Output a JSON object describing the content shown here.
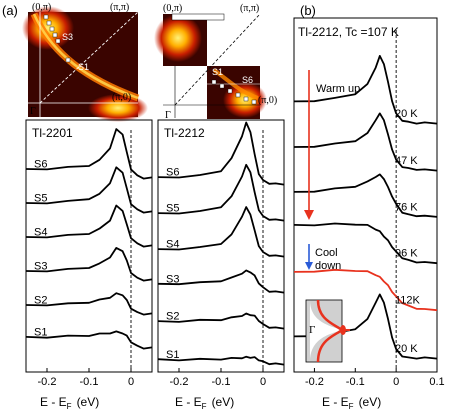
{
  "figure": {
    "panel_a_label": "(a)",
    "panel_b_label": "(b)",
    "bz_labels": {
      "corner_0pi": "(0,π)",
      "corner_pipi": "(π,π)",
      "corner_pi0": "(π,0)",
      "gamma": "Γ"
    },
    "maps": [
      {
        "cut_labels": [
          "S3",
          "S1"
        ]
      },
      {
        "cut_labels": [
          "S1",
          "S6"
        ]
      }
    ],
    "xlabel": "E - E_F (eV)",
    "xlabel_main": "E - E",
    "xlabel_sub": "F",
    "xlabel_unit": "(eV)",
    "panel_b_inset_label": "Γ",
    "colors": {
      "traces": "#000000",
      "highlight_trace": "#e8321e",
      "warm_arrow": "#e8321e",
      "cool_arrow": "#2a5bd7",
      "map_hot": "#ffe14a",
      "map_bg": "#2a0000"
    }
  },
  "chart_data": [
    {
      "type": "line",
      "title": "Tl-2201",
      "xlabel": "E - E_F (eV)",
      "ylabel": "",
      "xlim": [
        -0.25,
        0.05
      ],
      "xticks": [
        "-0.2",
        "-0.1",
        "0"
      ],
      "x": [
        -0.25,
        -0.2,
        -0.15,
        -0.1,
        -0.075,
        -0.05,
        -0.035,
        -0.02,
        -0.01,
        0.0,
        0.015,
        0.03,
        0.05
      ],
      "series": [
        {
          "name": "S1",
          "values": [
            0.25,
            0.26,
            0.28,
            0.3,
            0.33,
            0.36,
            0.38,
            0.36,
            0.28,
            0.15,
            0.04,
            0.0,
            0.0
          ]
        },
        {
          "name": "S2",
          "values": [
            0.2,
            0.22,
            0.24,
            0.28,
            0.33,
            0.4,
            0.48,
            0.46,
            0.32,
            0.14,
            0.03,
            0.0,
            0.0
          ]
        },
        {
          "name": "S3",
          "values": [
            0.2,
            0.22,
            0.25,
            0.3,
            0.38,
            0.55,
            0.75,
            0.7,
            0.45,
            0.18,
            0.04,
            0.0,
            0.0
          ]
        },
        {
          "name": "S4",
          "values": [
            0.2,
            0.22,
            0.25,
            0.3,
            0.4,
            0.62,
            0.95,
            0.85,
            0.5,
            0.2,
            0.05,
            0.0,
            0.0
          ]
        },
        {
          "name": "S5",
          "values": [
            0.2,
            0.22,
            0.25,
            0.32,
            0.42,
            0.7,
            1.05,
            0.95,
            0.55,
            0.2,
            0.05,
            0.0,
            0.0
          ]
        },
        {
          "name": "S6",
          "values": [
            0.2,
            0.22,
            0.25,
            0.3,
            0.42,
            0.72,
            1.15,
            1.05,
            0.6,
            0.22,
            0.05,
            0.0,
            0.0
          ]
        }
      ]
    },
    {
      "type": "line",
      "title": "Tl-2212",
      "xlabel": "E - E_F (eV)",
      "ylabel": "",
      "xlim": [
        -0.25,
        0.05
      ],
      "xticks": [
        "-0.2",
        "-0.1",
        "0"
      ],
      "x": [
        -0.25,
        -0.2,
        -0.15,
        -0.1,
        -0.075,
        -0.05,
        -0.04,
        -0.03,
        -0.02,
        -0.01,
        0.0,
        0.015,
        0.03,
        0.05
      ],
      "series": [
        {
          "name": "S1",
          "values": [
            0.1,
            0.1,
            0.11,
            0.12,
            0.13,
            0.15,
            0.16,
            0.16,
            0.15,
            0.1,
            0.05,
            0.01,
            0.0,
            0.0
          ]
        },
        {
          "name": "S2",
          "values": [
            0.15,
            0.16,
            0.18,
            0.2,
            0.24,
            0.3,
            0.33,
            0.32,
            0.28,
            0.18,
            0.08,
            0.02,
            0.0,
            0.0
          ]
        },
        {
          "name": "S3",
          "values": [
            0.18,
            0.2,
            0.22,
            0.27,
            0.33,
            0.45,
            0.5,
            0.48,
            0.38,
            0.22,
            0.1,
            0.02,
            0.0,
            0.0
          ]
        },
        {
          "name": "S4",
          "values": [
            0.15,
            0.17,
            0.2,
            0.3,
            0.5,
            0.95,
            1.15,
            1.0,
            0.6,
            0.25,
            0.08,
            0.02,
            0.0,
            0.0
          ]
        },
        {
          "name": "S5",
          "values": [
            0.15,
            0.17,
            0.2,
            0.32,
            0.55,
            1.05,
            1.3,
            1.15,
            0.65,
            0.25,
            0.08,
            0.02,
            0.0,
            0.0
          ]
        },
        {
          "name": "S6",
          "values": [
            0.15,
            0.17,
            0.2,
            0.32,
            0.6,
            1.15,
            1.45,
            1.25,
            0.7,
            0.25,
            0.08,
            0.02,
            0.0,
            0.0
          ]
        }
      ]
    },
    {
      "type": "line",
      "title": "Tl-2212, Tc =107 K",
      "xlabel": "E - E_F (eV)",
      "ylabel": "",
      "xlim": [
        -0.25,
        0.1
      ],
      "xticks": [
        "-0.2",
        "-0.1",
        "0",
        "0.1"
      ],
      "annotations": [
        "Warm up",
        "Cool down"
      ],
      "x": [
        -0.25,
        -0.2,
        -0.15,
        -0.1,
        -0.07,
        -0.05,
        -0.04,
        -0.03,
        -0.02,
        -0.01,
        0.0,
        0.015,
        0.03,
        0.05,
        0.07,
        0.1
      ],
      "series": [
        {
          "name": "20 K",
          "values": [
            0.3,
            0.32,
            0.35,
            0.42,
            0.55,
            0.8,
            0.9,
            0.8,
            0.55,
            0.3,
            0.12,
            0.03,
            0.0,
            0.0,
            0.0,
            0.0
          ]
        },
        {
          "name": "112K",
          "values": [
            0.55,
            0.57,
            0.58,
            0.58,
            0.56,
            0.52,
            0.48,
            0.43,
            0.36,
            0.28,
            0.2,
            0.12,
            0.07,
            0.04,
            0.02,
            0.02
          ]
        },
        {
          "name": "96 K",
          "values": [
            0.55,
            0.56,
            0.57,
            0.57,
            0.55,
            0.5,
            0.46,
            0.4,
            0.33,
            0.25,
            0.17,
            0.09,
            0.05,
            0.03,
            0.02,
            0.02
          ]
        },
        {
          "name": "76 K",
          "values": [
            0.35,
            0.37,
            0.4,
            0.44,
            0.5,
            0.58,
            0.6,
            0.55,
            0.42,
            0.3,
            0.18,
            0.07,
            0.03,
            0.02,
            0.01,
            0.01
          ]
        },
        {
          "name": "47 K",
          "values": [
            0.32,
            0.34,
            0.37,
            0.42,
            0.52,
            0.72,
            0.8,
            0.72,
            0.5,
            0.3,
            0.14,
            0.05,
            0.02,
            0.01,
            0.0,
            0.0
          ]
        },
        {
          "name": "20 K",
          "values": [
            0.3,
            0.32,
            0.35,
            0.42,
            0.55,
            0.8,
            0.95,
            0.85,
            0.58,
            0.32,
            0.13,
            0.04,
            0.01,
            0.0,
            0.0,
            0.0
          ]
        }
      ]
    }
  ]
}
